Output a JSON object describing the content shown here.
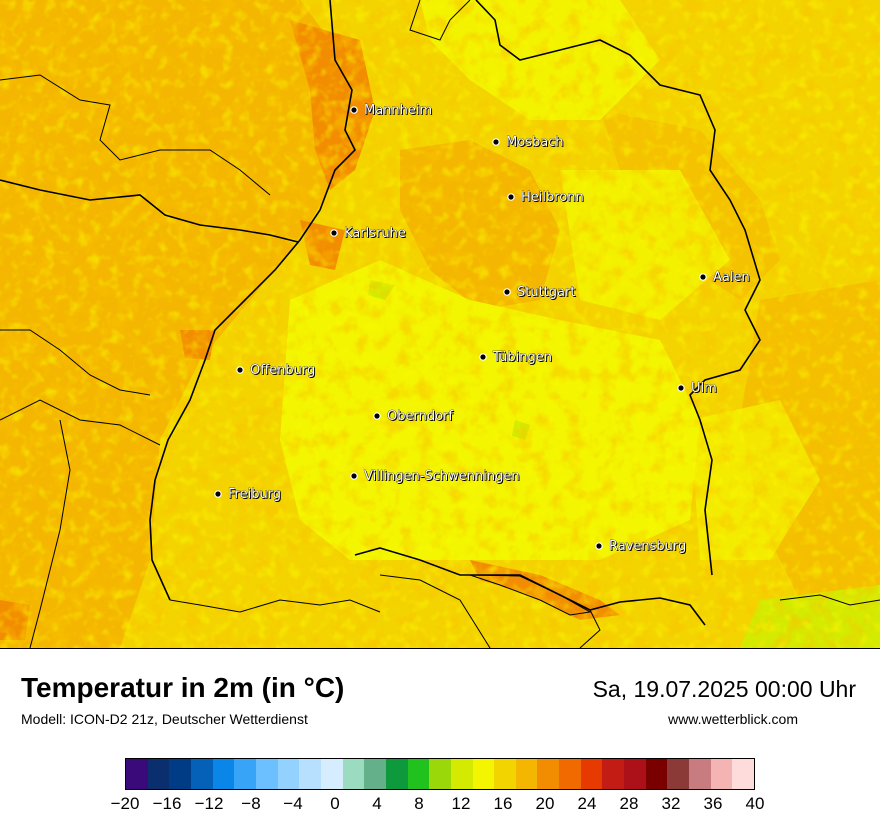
{
  "title": "Temperatur in 2m (in °C)",
  "model": "Modell: ICON-D2 21z, Deutscher Wetterdienst",
  "datetime": "Sa, 19.07.2025 00:00 Uhr",
  "website": "www.wetterblick.com",
  "cities": [
    {
      "name": "Mannheim"
    },
    {
      "name": "Mosbach"
    },
    {
      "name": "Heilbronn"
    },
    {
      "name": "Karlsruhe"
    },
    {
      "name": "Aalen"
    },
    {
      "name": "Stuttgart"
    },
    {
      "name": "Tübingen"
    },
    {
      "name": "Offenburg"
    },
    {
      "name": "Ulm"
    },
    {
      "name": "Oberndorf"
    },
    {
      "name": "Villingen-Schwenningen"
    },
    {
      "name": "Freiburg"
    },
    {
      "name": "Ravensburg"
    }
  ],
  "legend": {
    "colors": [
      "#3a0a7a",
      "#0b2f6e",
      "#003c86",
      "#0560b8",
      "#0a85e8",
      "#38a4f8",
      "#6cc0ff",
      "#93d2ff",
      "#b7e0ff",
      "#d6ecff",
      "#9bdcc0",
      "#63b08a",
      "#0e9a3c",
      "#22c21e",
      "#9ad80a",
      "#d4ea00",
      "#f3f600",
      "#f2d400",
      "#f4b600",
      "#f28c00",
      "#f06a00",
      "#e63a00",
      "#c21c14",
      "#ac1018",
      "#7a0000",
      "#8c3a38",
      "#c97c80",
      "#f4b4b4",
      "#ffdcdc"
    ],
    "ticks": [
      "−20",
      "−16",
      "−12",
      "−8",
      "−4",
      "0",
      "4",
      "8",
      "12",
      "16",
      "20",
      "24",
      "28",
      "32",
      "36",
      "40"
    ],
    "min": -20,
    "max": 40
  }
}
